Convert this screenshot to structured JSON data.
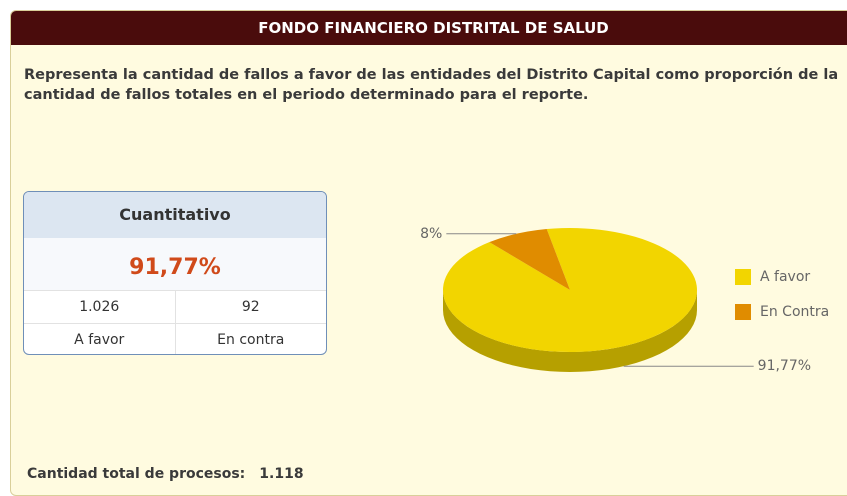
{
  "header": {
    "title": "FONDO FINANCIERO DISTRITAL DE SALUD"
  },
  "description": "Representa la cantidad de fallos a favor de las entidades del Distrito Capital como proporción de la cantidad de fallos totales en el periodo determinado para el reporte.",
  "card": {
    "title": "Cuantitativo",
    "percent": "91,77%",
    "rows": [
      [
        "1.026",
        "92"
      ],
      [
        "A favor",
        "En contra"
      ]
    ]
  },
  "chart_data": {
    "type": "pie",
    "categories": [
      "A favor",
      "En Contra"
    ],
    "values": [
      91.77,
      8
    ],
    "value_labels": [
      "91,77%",
      "8%"
    ],
    "colors": [
      "#f2d500",
      "#e08c00"
    ],
    "legend": "right"
  },
  "footer": {
    "label": "Cantidad total de procesos:",
    "value": "1.118"
  }
}
